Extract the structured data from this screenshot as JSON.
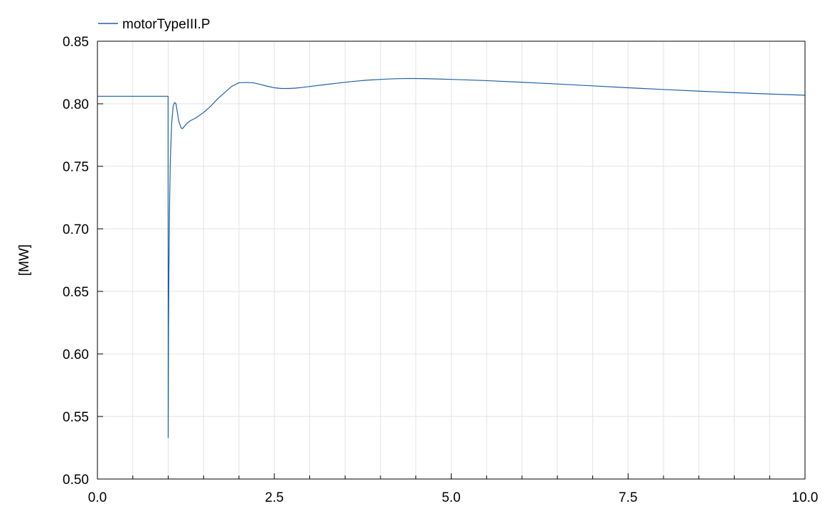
{
  "chart_data": {
    "type": "line",
    "title": "",
    "xlabel": "",
    "ylabel": "[MW]",
    "xlim": [
      0,
      10
    ],
    "ylim": [
      0.5,
      0.85
    ],
    "x_ticks": [
      0,
      2.5,
      5,
      7.5,
      10
    ],
    "x_tick_labels": [
      "0.0",
      "2.5",
      "5.0",
      "7.5",
      "10.0"
    ],
    "x_minor_step": 0.5,
    "y_ticks": [
      0.5,
      0.55,
      0.6,
      0.65,
      0.7,
      0.75,
      0.8,
      0.85
    ],
    "y_tick_labels": [
      "0.50",
      "0.55",
      "0.60",
      "0.65",
      "0.70",
      "0.75",
      "0.80",
      "0.85"
    ],
    "grid": true,
    "legend_position": "top-left",
    "colors": {
      "series": "#1f5fa8",
      "grid": "#e3e3e3",
      "axes": "#000000"
    },
    "series": [
      {
        "name": "motorTypeIII.P",
        "x": [
          0,
          0.5,
          0.999,
          1.0,
          1.002,
          1.005,
          1.01,
          1.02,
          1.03,
          1.05,
          1.07,
          1.09,
          1.11,
          1.13,
          1.15,
          1.18,
          1.2,
          1.23,
          1.26,
          1.3,
          1.4,
          1.5,
          1.6,
          1.7,
          1.8,
          1.9,
          2.0,
          2.1,
          2.2,
          2.3,
          2.4,
          2.5,
          2.6,
          2.7,
          2.8,
          2.9,
          3.0,
          3.2,
          3.4,
          3.6,
          3.8,
          4.0,
          4.2,
          4.4,
          4.6,
          4.8,
          5.0,
          5.5,
          6.0,
          6.5,
          7.0,
          7.5,
          8.0,
          8.5,
          9.0,
          9.5,
          10.0
        ],
        "y": [
          0.806,
          0.806,
          0.806,
          0.533,
          0.56,
          0.62,
          0.665,
          0.72,
          0.755,
          0.785,
          0.798,
          0.801,
          0.8,
          0.793,
          0.786,
          0.781,
          0.78,
          0.782,
          0.784,
          0.786,
          0.789,
          0.793,
          0.798,
          0.804,
          0.809,
          0.814,
          0.8168,
          0.817,
          0.8168,
          0.8155,
          0.814,
          0.8128,
          0.8122,
          0.8122,
          0.8125,
          0.8131,
          0.8138,
          0.8152,
          0.8165,
          0.8178,
          0.8188,
          0.8195,
          0.82,
          0.8202,
          0.8201,
          0.8198,
          0.8195,
          0.8185,
          0.8172,
          0.8158,
          0.8143,
          0.8128,
          0.8114,
          0.8101,
          0.8089,
          0.8078,
          0.8068
        ]
      }
    ]
  }
}
